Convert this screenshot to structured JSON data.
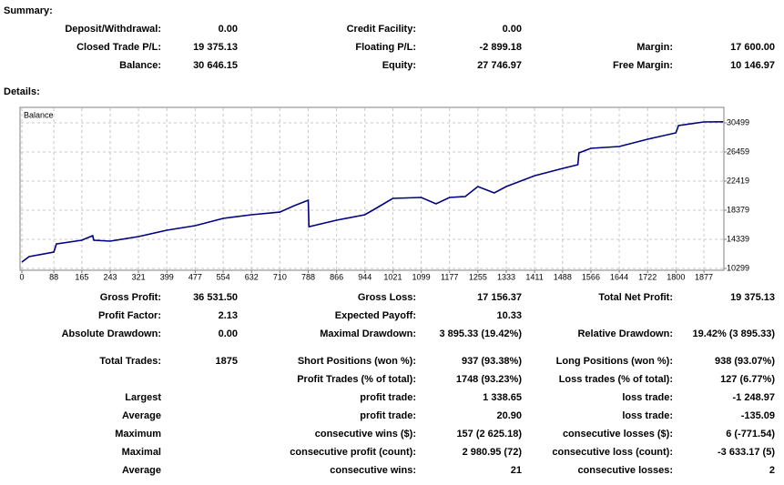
{
  "summary": {
    "title": "Summary:",
    "rows": [
      [
        "Deposit/Withdrawal:",
        "0.00",
        "Credit Facility:",
        "0.00",
        null,
        null
      ],
      [
        "Closed Trade P/L:",
        "19 375.13",
        "Floating P/L:",
        "-2 899.18",
        "Margin:",
        "17 600.00"
      ],
      [
        "Balance:",
        "30 646.15",
        "Equity:",
        "27 746.97",
        "Free Margin:",
        "10 146.97"
      ]
    ]
  },
  "details": {
    "title": "Details:",
    "rows": [
      [
        "Gross Profit:",
        "36 531.50",
        "Gross Loss:",
        "17 156.37",
        "Total Net Profit:",
        "19 375.13"
      ],
      [
        "Profit Factor:",
        "2.13",
        "Expected Payoff:",
        "10.33",
        null,
        null
      ],
      [
        "Absolute Drawdown:",
        "0.00",
        "Maximal Drawdown:",
        "3 895.33 (19.42%)",
        "Relative Drawdown:",
        "19.42% (3 895.33)"
      ],
      [
        "Total Trades:",
        "1875",
        "Short Positions (won %):",
        "937 (93.38%)",
        "Long Positions (won %):",
        "938 (93.07%)"
      ],
      [
        null,
        null,
        "Profit Trades (% of total):",
        "1748 (93.23%)",
        "Loss trades (% of total):",
        "127 (6.77%)"
      ],
      [
        "Largest",
        null,
        "profit trade:",
        "1 338.65",
        "loss trade:",
        "-1 248.97"
      ],
      [
        "Average",
        null,
        "profit trade:",
        "20.90",
        "loss trade:",
        "-135.09"
      ],
      [
        "Maximum",
        null,
        "consecutive wins ($):",
        "157 (2 625.18)",
        "consecutive losses ($):",
        "6 (-771.54)"
      ],
      [
        "Maximal",
        null,
        "consecutive profit (count):",
        "2 980.95 (72)",
        "consecutive loss (count):",
        "-3 633.17 (5)"
      ],
      [
        "Average",
        null,
        "consecutive wins:",
        "21",
        "consecutive losses:",
        "2"
      ]
    ]
  },
  "balance_chart": {
    "type": "line",
    "title": "Balance",
    "color": "#000080",
    "grid": true,
    "x": [
      0,
      20,
      88,
      95,
      165,
      195,
      198,
      243,
      321,
      399,
      477,
      554,
      632,
      710,
      750,
      788,
      790,
      866,
      944,
      970,
      1021,
      1099,
      1140,
      1177,
      1220,
      1255,
      1300,
      1333,
      1411,
      1488,
      1530,
      1533,
      1566,
      1644,
      1722,
      1800,
      1807,
      1877,
      1930
    ],
    "values": [
      11180,
      11938,
      12570,
      13700,
      14210,
      14840,
      14210,
      14085,
      14715,
      15600,
      16230,
      17240,
      17746,
      18120,
      19010,
      19770,
      16100,
      16990,
      17750,
      18500,
      20020,
      20150,
      19260,
      20150,
      20270,
      21660,
      20780,
      21660,
      23170,
      24180,
      24690,
      26330,
      26960,
      27220,
      28230,
      29110,
      30120,
      30625,
      30646
    ],
    "xlim": [
      0,
      1932
    ],
    "ylim": [
      10047,
      32645
    ],
    "xticks": [
      0,
      88,
      165,
      243,
      321,
      399,
      477,
      554,
      632,
      710,
      788,
      866,
      944,
      1021,
      1099,
      1177,
      1255,
      1333,
      1411,
      1488,
      1566,
      1644,
      1722,
      1800,
      1877
    ],
    "yticks": [
      10299,
      14339,
      18379,
      22419,
      26459,
      30499
    ]
  }
}
